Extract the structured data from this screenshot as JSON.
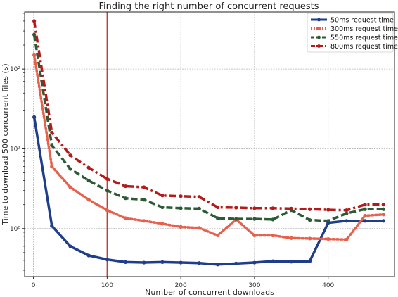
{
  "chart_data": {
    "type": "line",
    "title": "Finding the right number of concurrent requests",
    "xlabel": "Number of concurrent downloads",
    "ylabel": "Time to download 500 concurrent files (s)",
    "xlim": [
      -12,
      490
    ],
    "ylim": [
      0.25,
      520
    ],
    "yscale": "log",
    "grid": true,
    "legend_position": "top-right",
    "xticks": [
      0,
      100,
      200,
      300,
      400
    ],
    "xtick_labels": [
      "0",
      "100",
      "200",
      "300",
      "400"
    ],
    "yticks": [
      1,
      10,
      100
    ],
    "ytick_labels": [
      "10⁰",
      "10¹",
      "10²"
    ],
    "reference_line": {
      "x": 100,
      "color": "#d03a2e"
    },
    "x": [
      1,
      25,
      50,
      75,
      100,
      125,
      150,
      175,
      200,
      225,
      250,
      275,
      300,
      325,
      350,
      375,
      400,
      425,
      450,
      475
    ],
    "series": [
      {
        "name": "50ms request time",
        "color": "#1f3d8a",
        "style": "solid",
        "marker": "circle",
        "values": [
          25,
          1.08,
          0.6,
          0.46,
          0.41,
          0.38,
          0.375,
          0.38,
          0.375,
          0.37,
          0.355,
          0.365,
          0.375,
          0.39,
          0.385,
          0.39,
          1.18,
          1.25,
          1.25,
          1.25
        ]
      },
      {
        "name": "300ms request time",
        "color": "#e8604c",
        "style": "dotted",
        "marker": "circle",
        "values": [
          150,
          6.0,
          3.3,
          2.3,
          1.7,
          1.35,
          1.25,
          1.15,
          1.05,
          1.02,
          0.82,
          1.3,
          0.82,
          0.82,
          0.76,
          0.75,
          0.74,
          0.73,
          1.45,
          1.5
        ]
      },
      {
        "name": "550ms request time",
        "color": "#2d5a36",
        "style": "dashed",
        "marker": "circle",
        "values": [
          270,
          11.0,
          5.6,
          4.0,
          3.0,
          2.4,
          2.3,
          1.85,
          1.8,
          1.78,
          1.35,
          1.32,
          1.32,
          1.3,
          1.7,
          1.28,
          1.25,
          1.55,
          1.75,
          1.75
        ]
      },
      {
        "name": "800ms request time",
        "color": "#b51a1a",
        "style": "dashdot",
        "marker": "circle",
        "values": [
          400,
          16.0,
          8.3,
          5.8,
          4.2,
          3.4,
          3.3,
          2.6,
          2.55,
          2.5,
          1.85,
          1.83,
          1.8,
          1.8,
          1.78,
          1.75,
          1.72,
          1.7,
          2.0,
          2.0
        ]
      }
    ]
  }
}
